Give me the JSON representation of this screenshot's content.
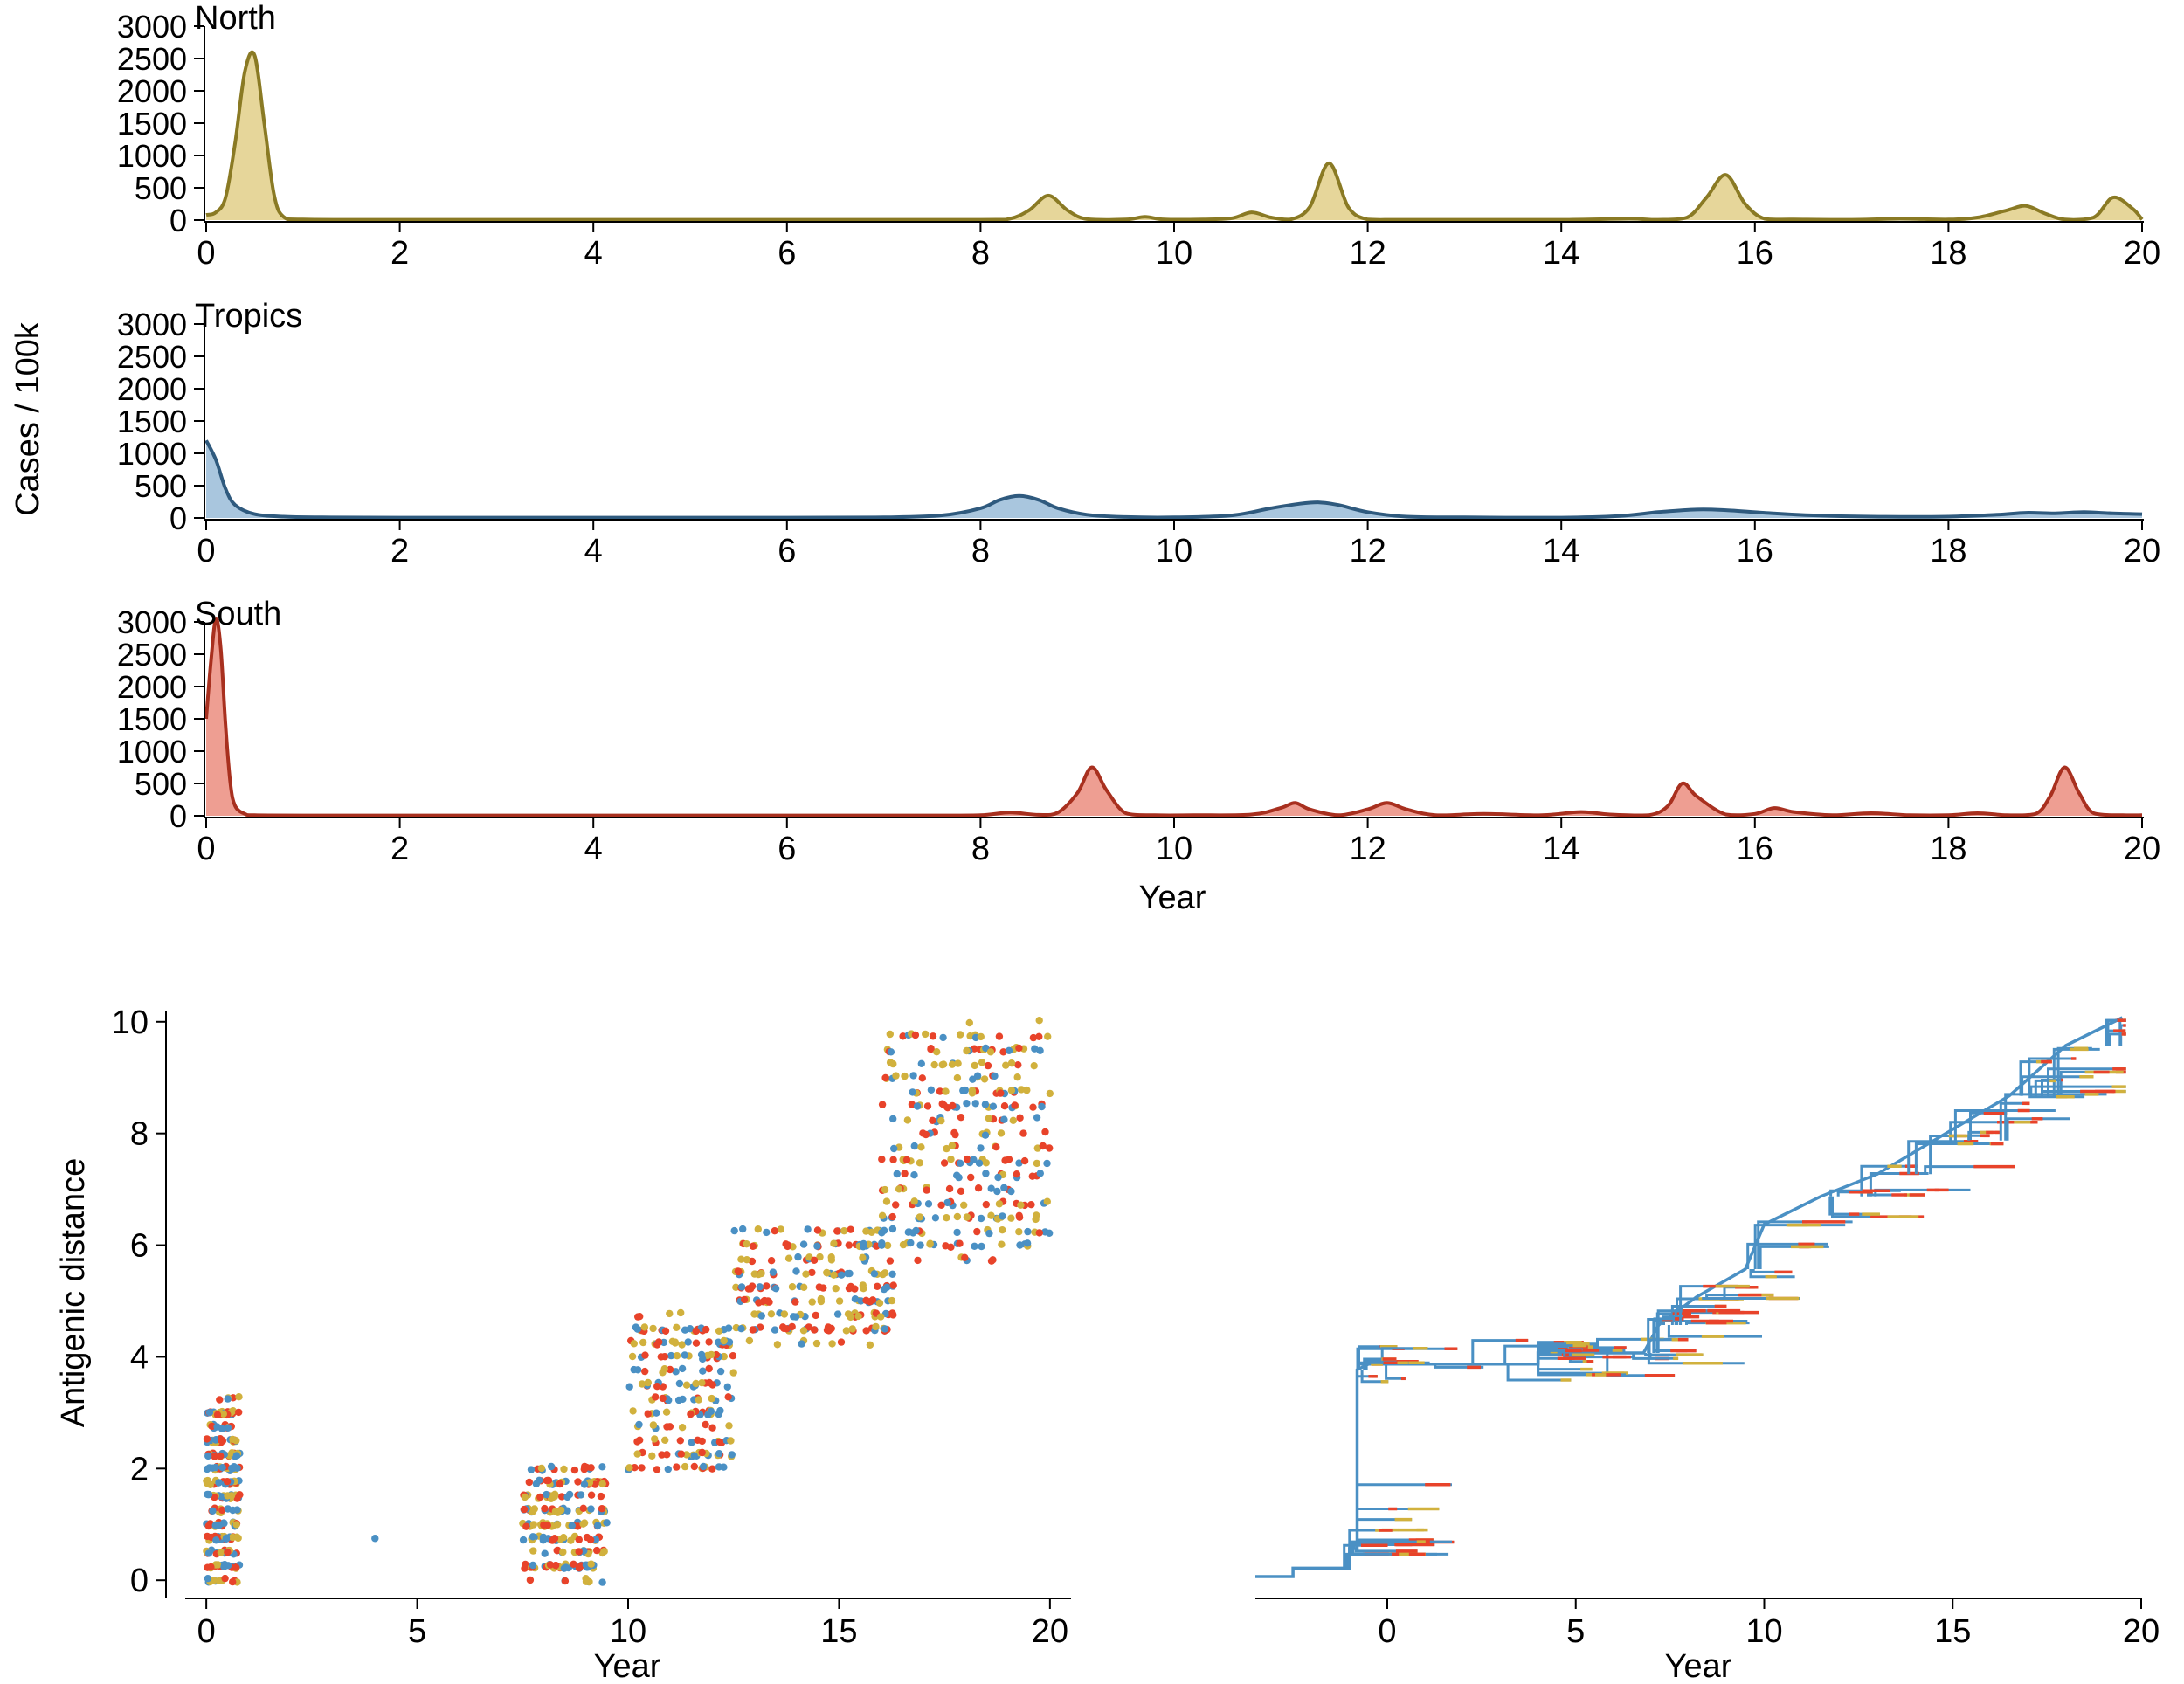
{
  "colors": {
    "north_line": "#8a7a24",
    "north_fill": "#e6d69a",
    "tropics_line": "#2f5a7e",
    "tropics_fill": "#a9c6de",
    "south_line": "#a8301f",
    "south_fill": "#ee9e92",
    "blue": "#4a90c4",
    "red": "#e8432a",
    "yellow": "#d1b13d",
    "axis": "#000000"
  },
  "top_panels": {
    "shared_ylabel": "Cases / 100k",
    "shared_xlabel": "Year",
    "x_ticks": [
      "0",
      "2",
      "4",
      "6",
      "8",
      "10",
      "12",
      "14",
      "16",
      "18",
      "20"
    ],
    "y_ticks": [
      "0",
      "500",
      "1000",
      "1500",
      "2000",
      "2500",
      "3000"
    ]
  },
  "bottom_left": {
    "xlabel": "Year",
    "ylabel": "Antigenic distance",
    "x_ticks": [
      "0",
      "5",
      "10",
      "15",
      "20"
    ],
    "y_ticks": [
      "0",
      "2",
      "4",
      "6",
      "8",
      "10"
    ]
  },
  "bottom_right": {
    "xlabel": "Year",
    "x_ticks": [
      "0",
      "5",
      "10",
      "15",
      "20"
    ]
  },
  "chart_data": [
    {
      "type": "area",
      "title": "North",
      "xlabel": "Year",
      "ylabel": "Cases / 100k",
      "xlim": [
        0,
        20
      ],
      "ylim": [
        0,
        3000
      ],
      "series": [
        {
          "name": "North",
          "x": [
            0,
            0.1,
            0.2,
            0.3,
            0.4,
            0.5,
            0.6,
            0.7,
            0.8,
            1,
            2,
            4,
            6,
            8,
            8.3,
            8.5,
            8.7,
            8.9,
            9.1,
            9.5,
            9.7,
            9.9,
            10.3,
            10.6,
            10.8,
            11.0,
            11.2,
            11.4,
            11.6,
            11.8,
            12.0,
            12.3,
            13,
            14,
            14.7,
            15.0,
            15.3,
            15.5,
            15.7,
            15.9,
            16.1,
            16.4,
            17,
            17.5,
            18.0,
            18.3,
            18.6,
            18.8,
            19.0,
            19.2,
            19.5,
            19.7,
            19.9,
            20
          ],
          "y": [
            80,
            120,
            350,
            1200,
            2300,
            2550,
            1500,
            400,
            50,
            10,
            5,
            5,
            5,
            5,
            20,
            150,
            380,
            150,
            15,
            10,
            50,
            10,
            10,
            30,
            120,
            40,
            10,
            200,
            880,
            200,
            10,
            5,
            5,
            5,
            20,
            5,
            40,
            350,
            700,
            250,
            20,
            10,
            5,
            20,
            10,
            40,
            150,
            220,
            100,
            10,
            40,
            350,
            180,
            10
          ]
        }
      ]
    },
    {
      "type": "area",
      "title": "Tropics",
      "xlabel": "Year",
      "ylabel": "Cases / 100k",
      "xlim": [
        0,
        20
      ],
      "ylim": [
        0,
        3000
      ],
      "series": [
        {
          "name": "Tropics",
          "x": [
            0,
            0.1,
            0.2,
            0.3,
            0.5,
            0.8,
            1.2,
            2,
            4,
            6,
            7,
            7.6,
            8.0,
            8.2,
            8.4,
            8.6,
            8.8,
            9.1,
            9.5,
            10,
            10.6,
            11.0,
            11.3,
            11.5,
            11.7,
            12.0,
            12.4,
            13,
            14,
            14.6,
            15.0,
            15.4,
            15.7,
            16.1,
            16.6,
            17.2,
            18.0,
            18.5,
            18.8,
            19.1,
            19.4,
            19.7,
            20
          ],
          "y": [
            1200,
            900,
            450,
            200,
            60,
            20,
            10,
            5,
            5,
            5,
            10,
            40,
            150,
            280,
            340,
            280,
            150,
            50,
            15,
            10,
            40,
            150,
            220,
            240,
            200,
            90,
            20,
            10,
            5,
            30,
            90,
            130,
            120,
            80,
            40,
            20,
            20,
            50,
            80,
            70,
            90,
            70,
            60
          ]
        }
      ]
    },
    {
      "type": "area",
      "title": "South",
      "xlabel": "Year",
      "ylabel": "Cases / 100k",
      "xlim": [
        0,
        20
      ],
      "ylim": [
        0,
        3000
      ],
      "series": [
        {
          "name": "South",
          "x": [
            0,
            0.05,
            0.1,
            0.15,
            0.2,
            0.25,
            0.3,
            0.4,
            0.5,
            1,
            2,
            4,
            6,
            7.5,
            8.0,
            8.3,
            8.6,
            8.8,
            9.0,
            9.15,
            9.3,
            9.5,
            9.8,
            10.2,
            10.8,
            11.1,
            11.25,
            11.4,
            11.7,
            12.0,
            12.2,
            12.4,
            12.7,
            13.2,
            13.8,
            14.2,
            14.5,
            14.9,
            15.1,
            15.25,
            15.4,
            15.7,
            16.0,
            16.2,
            16.4,
            16.8,
            17.2,
            17.6,
            18.0,
            18.3,
            18.6,
            18.9,
            19.05,
            19.2,
            19.35,
            19.5,
            19.8,
            20
          ],
          "y": [
            1500,
            2400,
            3050,
            2600,
            1400,
            500,
            150,
            30,
            10,
            5,
            5,
            5,
            5,
            5,
            10,
            50,
            15,
            50,
            350,
            750,
            400,
            40,
            10,
            10,
            20,
            120,
            200,
            100,
            10,
            100,
            200,
            100,
            10,
            30,
            10,
            60,
            20,
            10,
            150,
            500,
            300,
            20,
            30,
            120,
            60,
            10,
            40,
            10,
            10,
            40,
            10,
            30,
            300,
            750,
            350,
            40,
            10,
            10
          ]
        }
      ]
    },
    {
      "type": "scatter",
      "title": "",
      "xlabel": "Year",
      "ylabel": "Antigenic distance",
      "xlim": [
        -0.5,
        20.5
      ],
      "ylim": [
        -0.2,
        10.2
      ],
      "clusters": [
        {
          "x": [
            0,
            0.8
          ],
          "y": [
            0,
            3.2
          ],
          "n": 260
        },
        {
          "x": [
            7.5,
            9.5
          ],
          "y": [
            0,
            2.0
          ],
          "n": 220
        },
        {
          "x": [
            10.0,
            12.5
          ],
          "y": [
            1.9,
            4.7
          ],
          "n": 200
        },
        {
          "x": [
            12.5,
            16.3
          ],
          "y": [
            4.3,
            6.3
          ],
          "n": 220
        },
        {
          "x": [
            16.0,
            20.0
          ],
          "y": [
            5.8,
            9.9
          ],
          "n": 300
        }
      ],
      "series": [
        {
          "name": "North",
          "color": "#d1b13d"
        },
        {
          "name": "Tropics",
          "color": "#4a90c4"
        },
        {
          "name": "South",
          "color": "#e8432a"
        }
      ]
    },
    {
      "type": "tree",
      "title": "",
      "xlabel": "Year",
      "ylabel": "",
      "xlim": [
        -4,
        20
      ],
      "ylim": [
        0,
        10
      ],
      "trunk": [
        [
          -3.5,
          0.0
        ],
        [
          -2.5,
          0.0
        ],
        [
          -2.5,
          0.15
        ],
        [
          -1.0,
          0.15
        ],
        [
          -1.0,
          0.5
        ],
        [
          -0.8,
          0.5
        ],
        [
          -0.8,
          3.7
        ],
        [
          -0.5,
          3.8
        ],
        [
          4.0,
          3.8
        ],
        [
          4.0,
          4.0
        ],
        [
          6.8,
          4.0
        ],
        [
          7.2,
          4.5
        ],
        [
          8.2,
          5.0
        ],
        [
          9.5,
          5.5
        ],
        [
          10.0,
          6.3
        ],
        [
          11.5,
          6.8
        ],
        [
          13.0,
          7.2
        ],
        [
          14.5,
          7.8
        ],
        [
          16.5,
          8.6
        ],
        [
          18.0,
          9.5
        ],
        [
          19.5,
          10.0
        ]
      ]
    }
  ]
}
